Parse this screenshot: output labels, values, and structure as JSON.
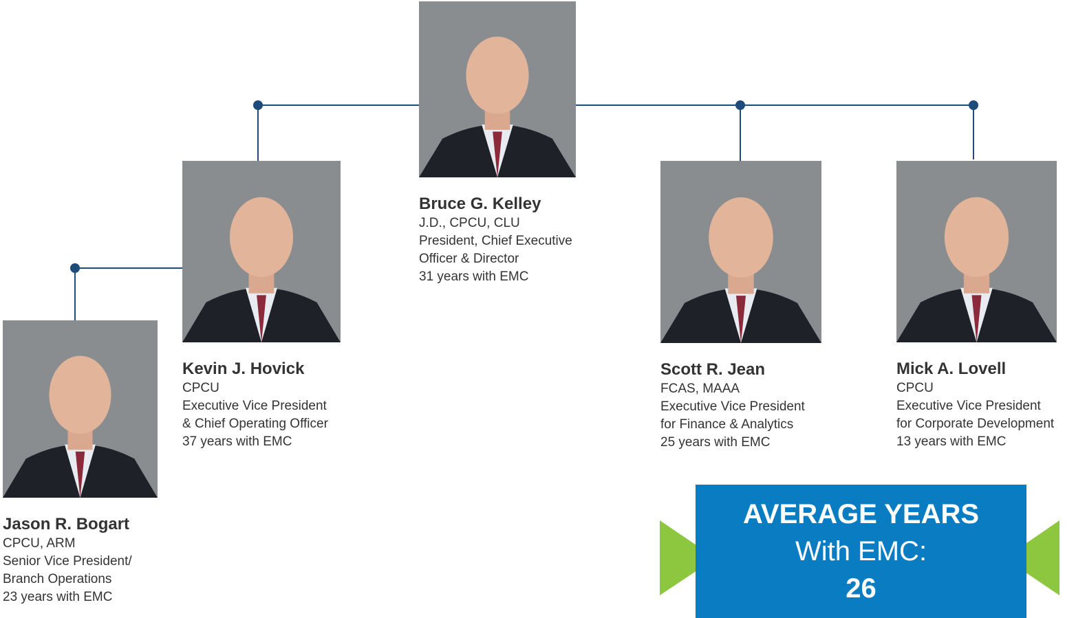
{
  "people": [
    {
      "name": "Bruce G. Kelley",
      "lines": [
        "J.D., CPCU, CLU",
        "President, Chief Executive",
        "Officer & Director",
        "31 years with EMC"
      ]
    },
    {
      "name": "Kevin J. Hovick",
      "lines": [
        "CPCU",
        "Executive Vice President",
        "& Chief Operating Officer",
        "37 years with EMC"
      ]
    },
    {
      "name": "Jason R. Bogart",
      "lines": [
        "CPCU, ARM",
        "Senior Vice President/",
        "Branch Operations",
        "23 years with EMC"
      ]
    },
    {
      "name": "Scott R. Jean",
      "lines": [
        "FCAS, MAAA",
        "Executive Vice President",
        "for Finance & Analytics",
        "25 years with EMC"
      ]
    },
    {
      "name": "Mick A. Lovell",
      "lines": [
        "CPCU",
        "Executive Vice President",
        "for Corporate Development",
        "13 years with EMC"
      ]
    }
  ],
  "callout": {
    "heading": "AVERAGE YEARS",
    "subheading": "With EMC:",
    "value": "26"
  }
}
